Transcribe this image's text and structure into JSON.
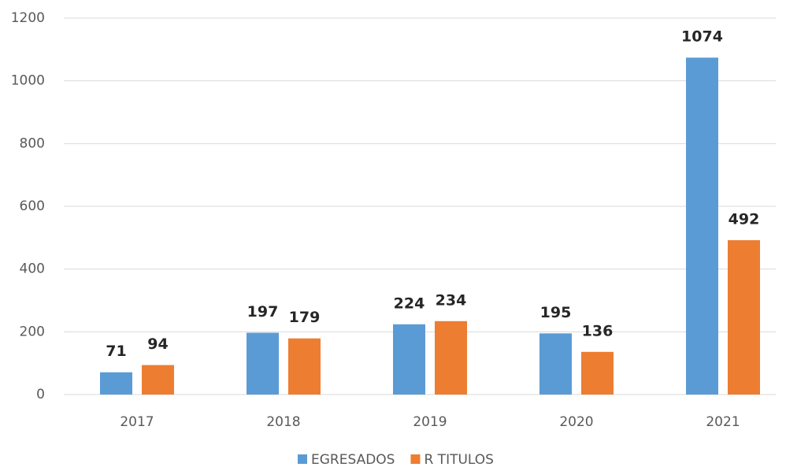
{
  "chart_data": {
    "type": "bar",
    "categories": [
      "2017",
      "2018",
      "2019",
      "2020",
      "2021"
    ],
    "series": [
      {
        "name": "EGRESADOS",
        "color": "#5b9bd5",
        "values": [
          71,
          197,
          224,
          195,
          1074
        ]
      },
      {
        "name": "R TITULOS",
        "color": "#ed7d31",
        "values": [
          94,
          179,
          234,
          136,
          492
        ]
      }
    ],
    "ylim": [
      0,
      1200
    ],
    "yticks": [
      0,
      200,
      400,
      600,
      800,
      1000,
      1200
    ],
    "grid": true,
    "legend": "bottom"
  }
}
